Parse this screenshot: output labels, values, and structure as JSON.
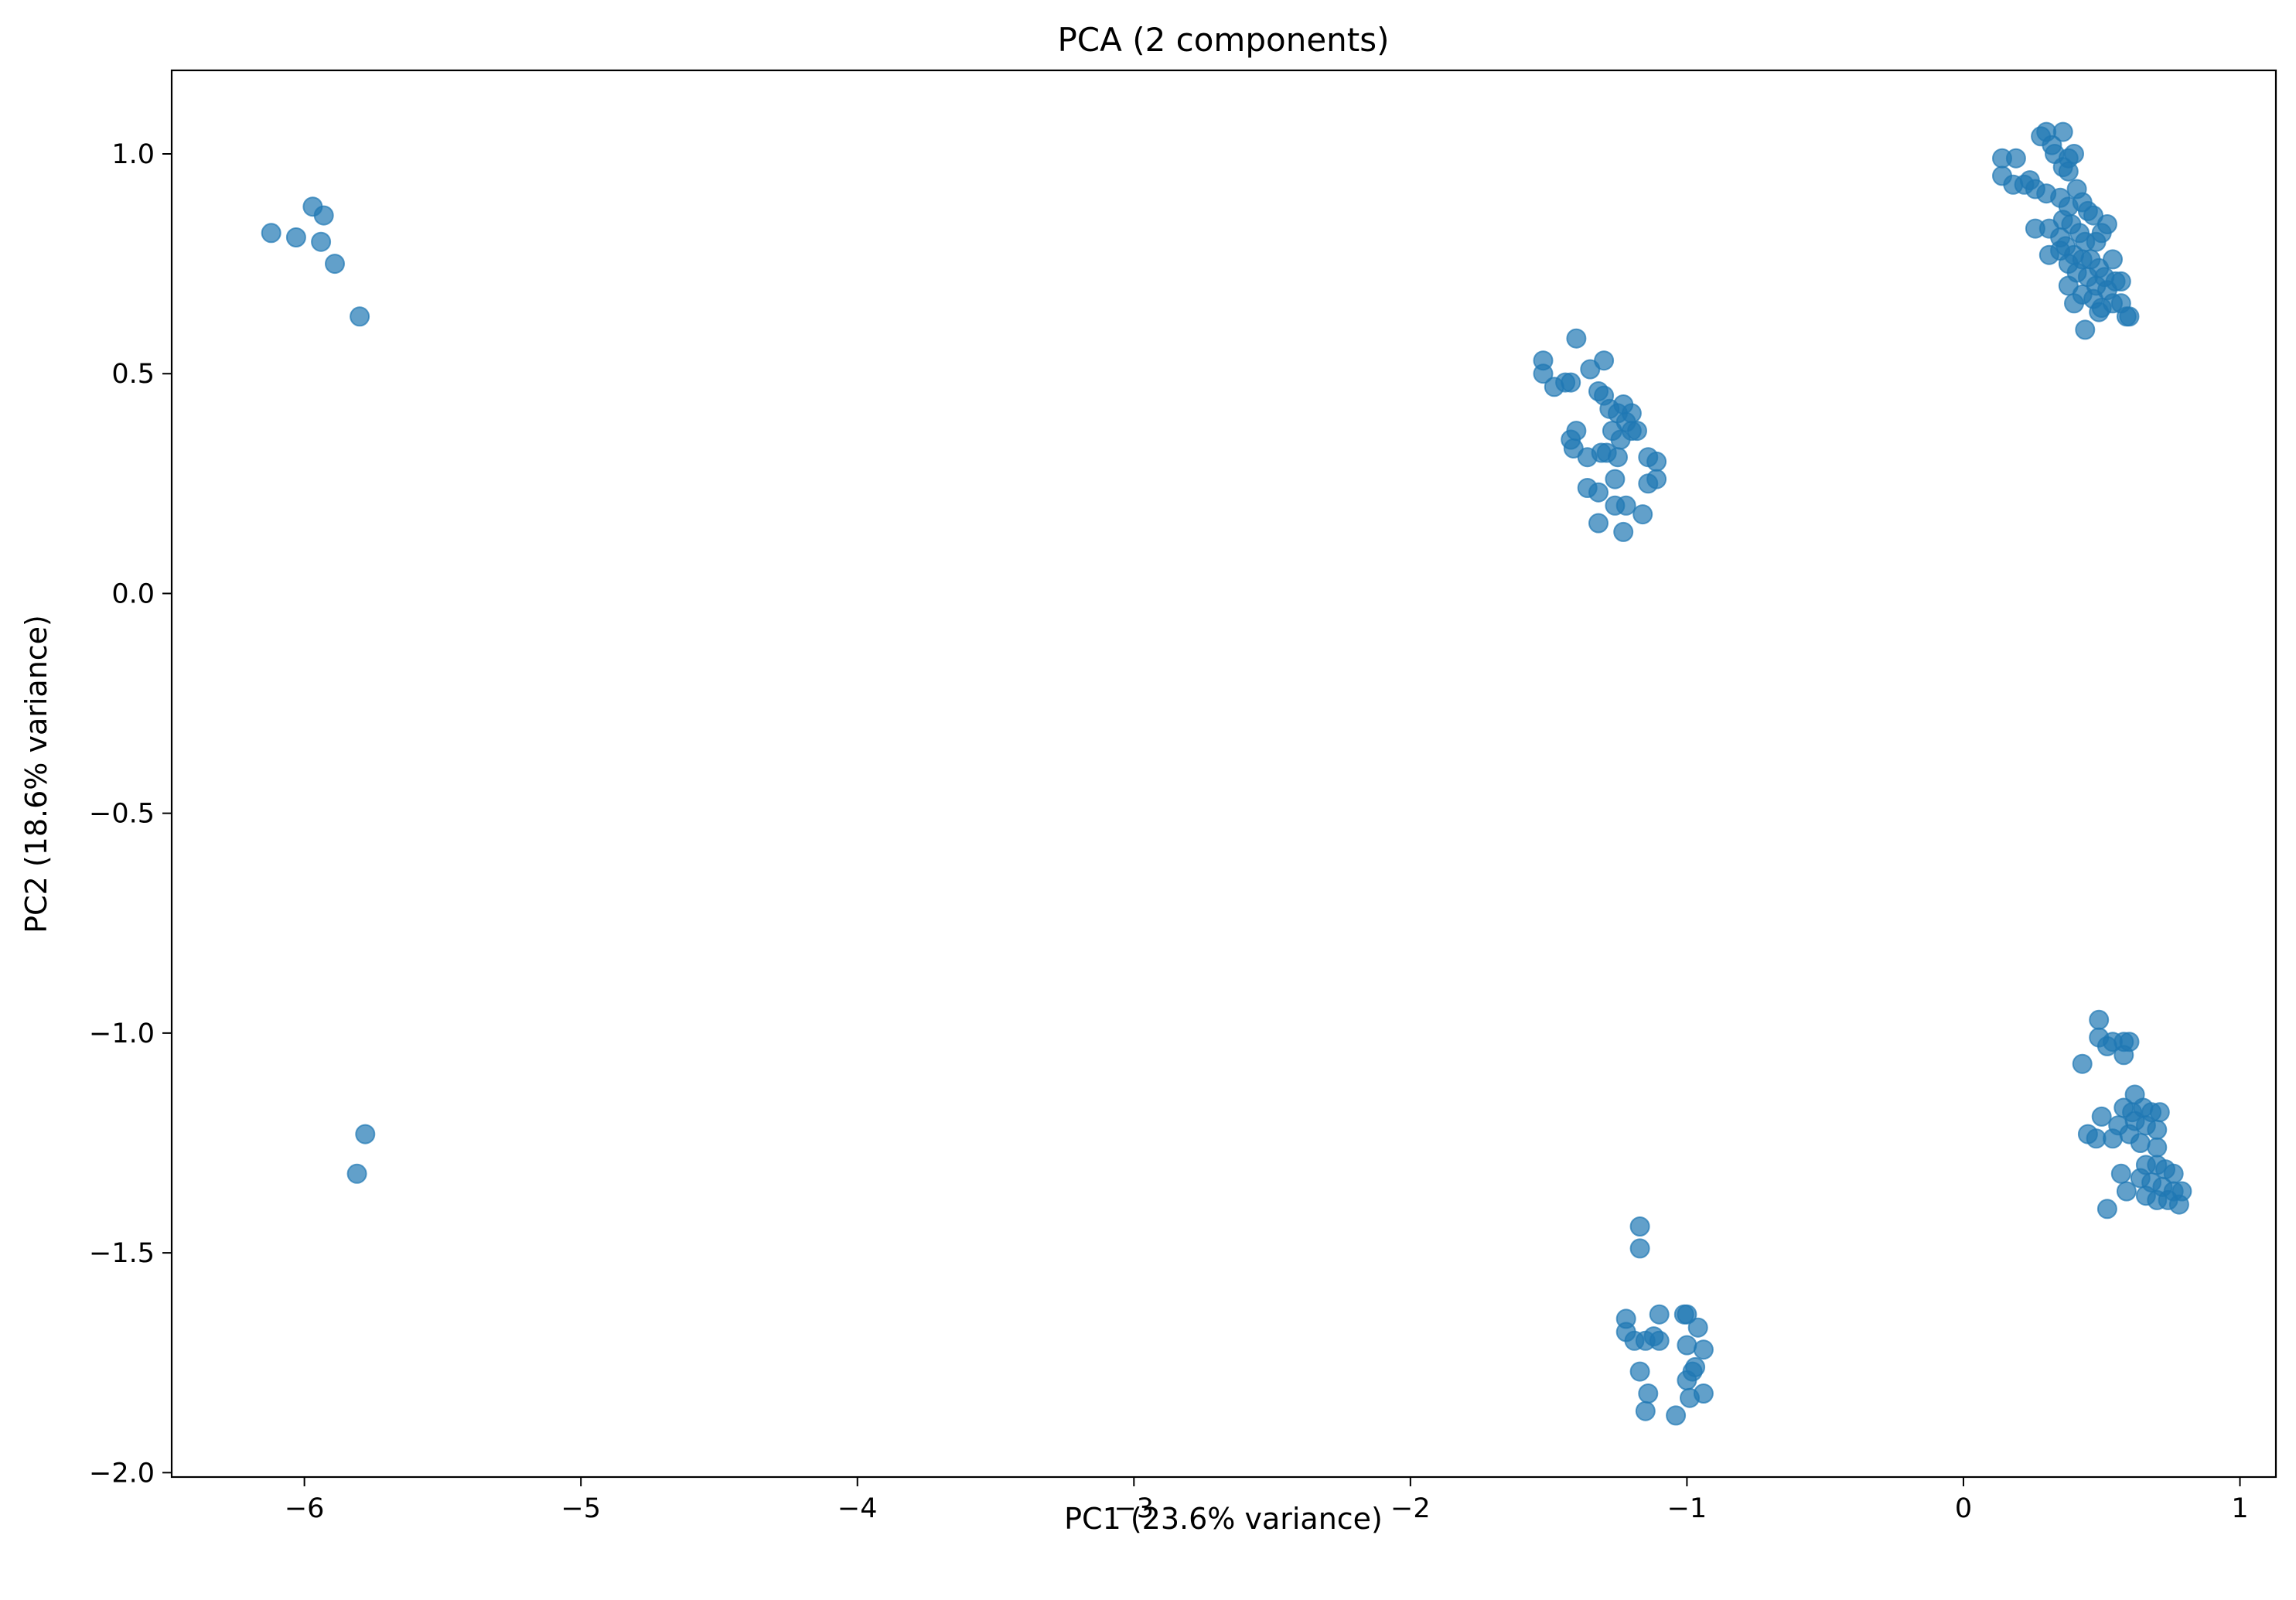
{
  "chart_data": {
    "type": "scatter",
    "title": "PCA (2 components)",
    "xlabel": "PC1 (23.6% variance)",
    "ylabel": "PC2 (18.6% variance)",
    "xlim": [
      -6.48,
      1.13
    ],
    "ylim": [
      -2.01,
      1.19
    ],
    "xticks": [
      {
        "value": -6,
        "label": "−6"
      },
      {
        "value": -5,
        "label": "−5"
      },
      {
        "value": -4,
        "label": "−4"
      },
      {
        "value": -3,
        "label": "−3"
      },
      {
        "value": -2,
        "label": "−2"
      },
      {
        "value": -1,
        "label": "−1"
      },
      {
        "value": 0,
        "label": "0"
      },
      {
        "value": 1,
        "label": "1"
      }
    ],
    "yticks": [
      {
        "value": 1.0,
        "label": "1.0"
      },
      {
        "value": 0.5,
        "label": "0.5"
      },
      {
        "value": 0.0,
        "label": "0.0"
      },
      {
        "value": -0.5,
        "label": "−0.5"
      },
      {
        "value": -1.0,
        "label": "−1.0"
      },
      {
        "value": -1.5,
        "label": "−1.5"
      },
      {
        "value": -2.0,
        "label": "−2.0"
      }
    ],
    "grid": false,
    "color": "#1f77b4",
    "point_opacity": 0.7,
    "points": [
      [
        -6.12,
        0.82
      ],
      [
        -6.03,
        0.81
      ],
      [
        -5.97,
        0.88
      ],
      [
        -5.93,
        0.86
      ],
      [
        -5.94,
        0.8
      ],
      [
        -5.89,
        0.75
      ],
      [
        -5.8,
        0.63
      ],
      [
        -5.78,
        -1.23
      ],
      [
        -5.81,
        -1.32
      ],
      [
        -1.52,
        0.53
      ],
      [
        -1.52,
        0.5
      ],
      [
        -1.48,
        0.47
      ],
      [
        -1.44,
        0.48
      ],
      [
        -1.42,
        0.48
      ],
      [
        -1.4,
        0.58
      ],
      [
        -1.35,
        0.51
      ],
      [
        -1.3,
        0.53
      ],
      [
        -1.32,
        0.46
      ],
      [
        -1.3,
        0.45
      ],
      [
        -1.28,
        0.42
      ],
      [
        -1.25,
        0.41
      ],
      [
        -1.23,
        0.43
      ],
      [
        -1.22,
        0.39
      ],
      [
        -1.2,
        0.37
      ],
      [
        -1.18,
        0.37
      ],
      [
        -1.24,
        0.35
      ],
      [
        -1.42,
        0.35
      ],
      [
        -1.4,
        0.37
      ],
      [
        -1.41,
        0.33
      ],
      [
        -1.36,
        0.31
      ],
      [
        -1.31,
        0.32
      ],
      [
        -1.29,
        0.32
      ],
      [
        -1.25,
        0.31
      ],
      [
        -1.36,
        0.24
      ],
      [
        -1.32,
        0.23
      ],
      [
        -1.26,
        0.26
      ],
      [
        -1.14,
        0.31
      ],
      [
        -1.11,
        0.3
      ],
      [
        -1.14,
        0.25
      ],
      [
        -1.11,
        0.26
      ],
      [
        -1.26,
        0.2
      ],
      [
        -1.22,
        0.2
      ],
      [
        -1.16,
        0.18
      ],
      [
        -1.32,
        0.16
      ],
      [
        -1.23,
        0.14
      ],
      [
        -1.27,
        0.37
      ],
      [
        -1.2,
        0.41
      ],
      [
        0.14,
        0.99
      ],
      [
        0.19,
        0.99
      ],
      [
        0.14,
        0.95
      ],
      [
        0.18,
        0.93
      ],
      [
        0.22,
        0.93
      ],
      [
        0.24,
        0.94
      ],
      [
        0.26,
        0.92
      ],
      [
        0.28,
        1.04
      ],
      [
        0.3,
        1.05
      ],
      [
        0.32,
        1.02
      ],
      [
        0.36,
        1.05
      ],
      [
        0.33,
        1.0
      ],
      [
        0.38,
        0.99
      ],
      [
        0.4,
        1.0
      ],
      [
        0.36,
        0.97
      ],
      [
        0.38,
        0.96
      ],
      [
        0.3,
        0.91
      ],
      [
        0.35,
        0.9
      ],
      [
        0.38,
        0.88
      ],
      [
        0.41,
        0.92
      ],
      [
        0.43,
        0.89
      ],
      [
        0.45,
        0.87
      ],
      [
        0.47,
        0.86
      ],
      [
        0.36,
        0.85
      ],
      [
        0.39,
        0.84
      ],
      [
        0.42,
        0.82
      ],
      [
        0.44,
        0.8
      ],
      [
        0.48,
        0.8
      ],
      [
        0.5,
        0.82
      ],
      [
        0.52,
        0.84
      ],
      [
        0.26,
        0.83
      ],
      [
        0.31,
        0.83
      ],
      [
        0.35,
        0.81
      ],
      [
        0.37,
        0.79
      ],
      [
        0.4,
        0.77
      ],
      [
        0.43,
        0.76
      ],
      [
        0.46,
        0.76
      ],
      [
        0.49,
        0.74
      ],
      [
        0.51,
        0.72
      ],
      [
        0.54,
        0.76
      ],
      [
        0.31,
        0.77
      ],
      [
        0.35,
        0.78
      ],
      [
        0.38,
        0.75
      ],
      [
        0.41,
        0.73
      ],
      [
        0.45,
        0.72
      ],
      [
        0.48,
        0.7
      ],
      [
        0.52,
        0.69
      ],
      [
        0.55,
        0.71
      ],
      [
        0.57,
        0.71
      ],
      [
        0.38,
        0.7
      ],
      [
        0.43,
        0.68
      ],
      [
        0.47,
        0.67
      ],
      [
        0.5,
        0.65
      ],
      [
        0.54,
        0.66
      ],
      [
        0.57,
        0.66
      ],
      [
        0.59,
        0.63
      ],
      [
        0.6,
        0.63
      ],
      [
        0.4,
        0.66
      ],
      [
        0.44,
        0.6
      ],
      [
        0.49,
        0.64
      ],
      [
        0.49,
        -0.97
      ],
      [
        0.49,
        -1.01
      ],
      [
        0.54,
        -1.02
      ],
      [
        0.58,
        -1.02
      ],
      [
        0.6,
        -1.02
      ],
      [
        0.52,
        -1.03
      ],
      [
        0.58,
        -1.05
      ],
      [
        0.43,
        -1.07
      ],
      [
        0.62,
        -1.14
      ],
      [
        0.58,
        -1.17
      ],
      [
        0.61,
        -1.18
      ],
      [
        0.65,
        -1.17
      ],
      [
        0.68,
        -1.18
      ],
      [
        0.71,
        -1.18
      ],
      [
        0.5,
        -1.19
      ],
      [
        0.56,
        -1.21
      ],
      [
        0.62,
        -1.2
      ],
      [
        0.66,
        -1.21
      ],
      [
        0.7,
        -1.22
      ],
      [
        0.45,
        -1.23
      ],
      [
        0.48,
        -1.24
      ],
      [
        0.54,
        -1.24
      ],
      [
        0.6,
        -1.23
      ],
      [
        0.64,
        -1.25
      ],
      [
        0.7,
        -1.26
      ],
      [
        0.66,
        -1.3
      ],
      [
        0.7,
        -1.3
      ],
      [
        0.73,
        -1.31
      ],
      [
        0.76,
        -1.32
      ],
      [
        0.57,
        -1.32
      ],
      [
        0.64,
        -1.33
      ],
      [
        0.68,
        -1.34
      ],
      [
        0.72,
        -1.35
      ],
      [
        0.76,
        -1.36
      ],
      [
        0.79,
        -1.36
      ],
      [
        0.59,
        -1.36
      ],
      [
        0.66,
        -1.37
      ],
      [
        0.7,
        -1.38
      ],
      [
        0.74,
        -1.38
      ],
      [
        0.78,
        -1.39
      ],
      [
        0.52,
        -1.4
      ],
      [
        -1.17,
        -1.44
      ],
      [
        -1.17,
        -1.49
      ],
      [
        -1.22,
        -1.65
      ],
      [
        -1.22,
        -1.68
      ],
      [
        -1.19,
        -1.7
      ],
      [
        -1.15,
        -1.7
      ],
      [
        -1.12,
        -1.69
      ],
      [
        -1.1,
        -1.64
      ],
      [
        -1.01,
        -1.64
      ],
      [
        -1.0,
        -1.64
      ],
      [
        -0.96,
        -1.67
      ],
      [
        -1.0,
        -1.71
      ],
      [
        -0.94,
        -1.72
      ],
      [
        -1.17,
        -1.77
      ],
      [
        -0.98,
        -1.77
      ],
      [
        -0.97,
        -1.76
      ],
      [
        -1.0,
        -1.79
      ],
      [
        -1.14,
        -1.82
      ],
      [
        -0.99,
        -1.83
      ],
      [
        -0.94,
        -1.82
      ],
      [
        -1.15,
        -1.86
      ],
      [
        -1.04,
        -1.87
      ],
      [
        -1.1,
        -1.7
      ]
    ]
  }
}
